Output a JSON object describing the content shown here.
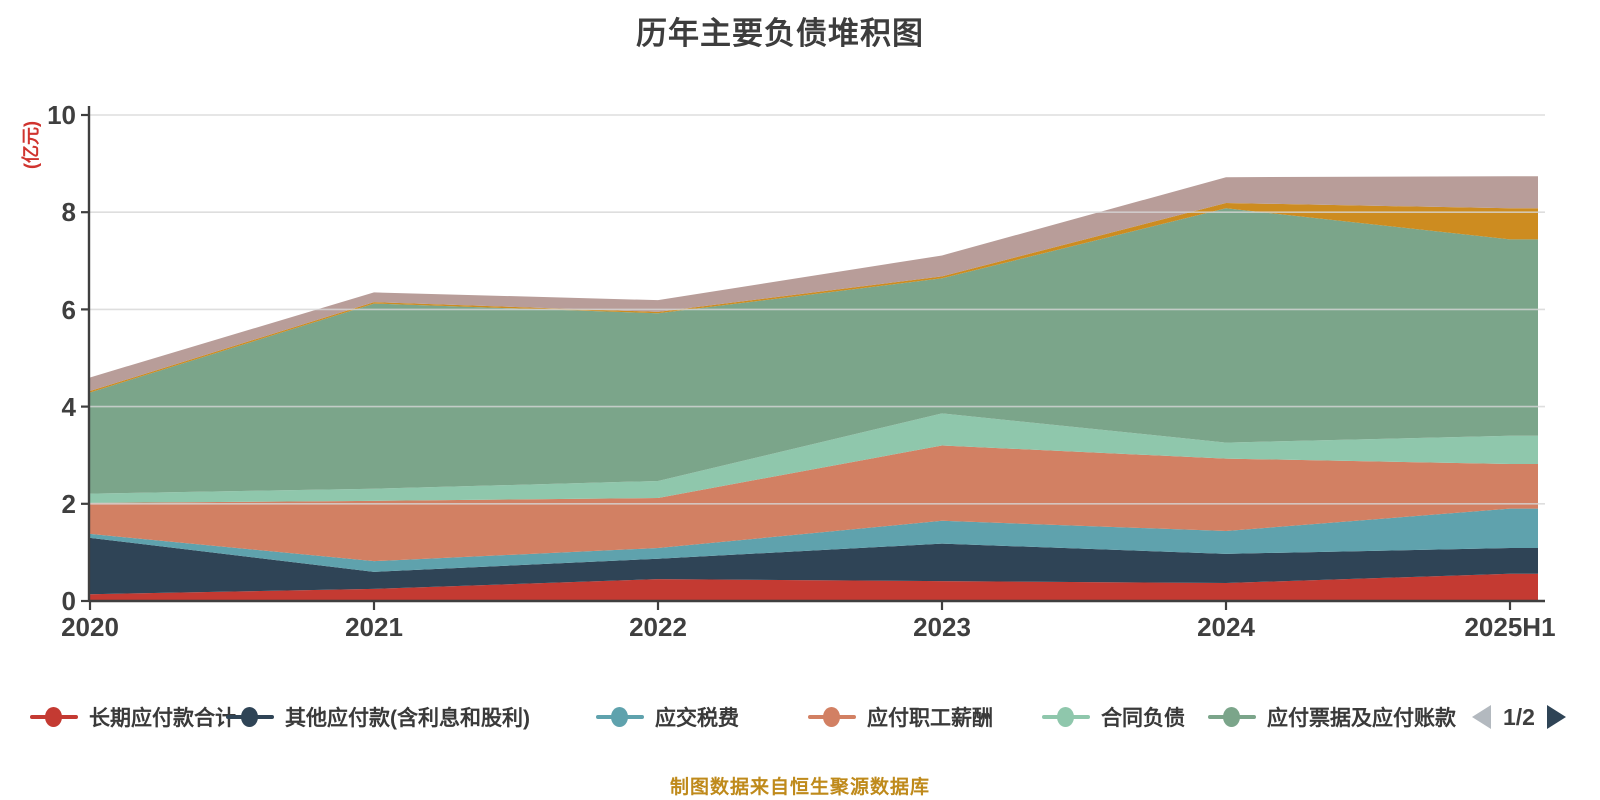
{
  "title": "历年主要负债堆积图",
  "y_axis": {
    "name": "(亿元)",
    "name_color": "#d0342f",
    "ticks": [
      "10",
      "8",
      "6",
      "4",
      "2",
      "0"
    ]
  },
  "x_axis": {
    "categories": [
      "2020",
      "2021",
      "2022",
      "2023",
      "2024",
      "2025H1"
    ]
  },
  "pagination": {
    "label": "1/2",
    "prev_color": "#b3b9bf",
    "next_color": "#2f4456"
  },
  "caption": {
    "text": "制图数据来自恒生聚源数据库",
    "color": "#bf8a1b"
  },
  "chart_data": {
    "type": "area",
    "stacked": true,
    "title": "历年主要负债堆积图",
    "unit": "亿元",
    "categories": [
      "2020",
      "2021",
      "2022",
      "2023",
      "2024",
      "2025H1"
    ],
    "ylim": [
      0,
      10
    ],
    "y_ticks": [
      0,
      2,
      4,
      6,
      8,
      10
    ],
    "grid": true,
    "legend_position": "bottom",
    "legend_page": "1/2",
    "series": [
      {
        "name": "长期应付款合计",
        "color": "#c43a32",
        "values": [
          0.14,
          0.25,
          0.45,
          0.41,
          0.37,
          0.56
        ]
      },
      {
        "name": "其他应付款(含利息和股利)",
        "color": "#2f4456",
        "values": [
          1.16,
          0.35,
          0.42,
          0.77,
          0.6,
          0.53
        ]
      },
      {
        "name": "应交税费",
        "color": "#5fa2ad",
        "values": [
          0.08,
          0.22,
          0.22,
          0.47,
          0.47,
          0.81
        ]
      },
      {
        "name": "应付职工薪酬",
        "color": "#d28063",
        "values": [
          0.64,
          1.24,
          1.03,
          1.55,
          1.49,
          0.92
        ]
      },
      {
        "name": "合同负债",
        "color": "#8fc7ac",
        "values": [
          0.19,
          0.25,
          0.35,
          0.66,
          0.33,
          0.58
        ]
      },
      {
        "name": "应付票据及应付账款",
        "color": "#7ba58a",
        "values": [
          2.08,
          3.81,
          3.45,
          2.78,
          4.82,
          4.04
        ]
      },
      {
        "name": "",
        "color": "#cd8c20",
        "values": [
          0.03,
          0.03,
          0.03,
          0.04,
          0.11,
          0.64
        ]
      },
      {
        "name": "",
        "color": "#b89d99",
        "values": [
          0.28,
          0.2,
          0.24,
          0.43,
          0.53,
          0.66
        ]
      }
    ]
  }
}
